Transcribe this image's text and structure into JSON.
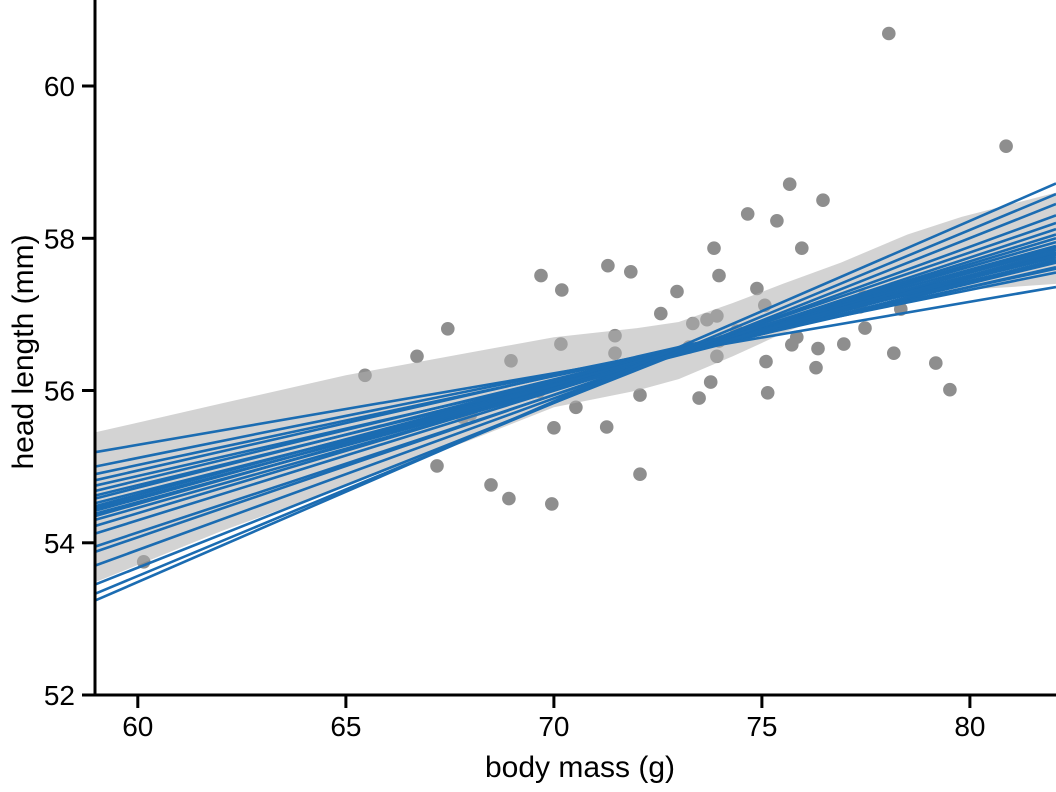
{
  "chart_data": {
    "type": "scatter",
    "title": "",
    "xlabel": "body mass (g)",
    "ylabel": "head length (mm)",
    "xlim": [
      58.97,
      82.07
    ],
    "ylim": [
      52,
      61.13
    ],
    "x_ticks": [
      "60",
      "65",
      "70",
      "75",
      "80"
    ],
    "x_tick_values": [
      60,
      65,
      70,
      75,
      80
    ],
    "y_ticks": [
      "52",
      "54",
      "56",
      "58",
      "60"
    ],
    "y_tick_values": [
      52,
      54,
      56,
      58,
      60
    ],
    "grid": false,
    "legend": "none",
    "axis_color": "#000000",
    "series": [
      {
        "name": "observations",
        "type": "points",
        "color": "#8e8e8e",
        "radius": 6.8,
        "points": [
          [
            60.14,
            53.75
          ],
          [
            65.46,
            56.2
          ],
          [
            66.71,
            56.45
          ],
          [
            67.19,
            55.01
          ],
          [
            67.45,
            56.81
          ],
          [
            67.81,
            55.65
          ],
          [
            68.0,
            55.69
          ],
          [
            68.49,
            54.76
          ],
          [
            68.92,
            54.58
          ],
          [
            68.97,
            56.39
          ],
          [
            69.64,
            55.99
          ],
          [
            69.69,
            57.51
          ],
          [
            69.95,
            54.51
          ],
          [
            70.0,
            55.51
          ],
          [
            70.17,
            56.61
          ],
          [
            70.19,
            57.32
          ],
          [
            70.53,
            55.78
          ],
          [
            71.27,
            55.52
          ],
          [
            71.3,
            57.64
          ],
          [
            71.47,
            56.72
          ],
          [
            71.47,
            56.49
          ],
          [
            71.85,
            57.56
          ],
          [
            72.07,
            55.94
          ],
          [
            72.07,
            54.9
          ],
          [
            72.57,
            57.01
          ],
          [
            72.96,
            57.3
          ],
          [
            73.25,
            56.57
          ],
          [
            73.34,
            56.88
          ],
          [
            73.49,
            55.9
          ],
          [
            73.68,
            56.93
          ],
          [
            73.77,
            56.11
          ],
          [
            73.85,
            57.87
          ],
          [
            73.92,
            56.98
          ],
          [
            73.92,
            56.45
          ],
          [
            73.97,
            56.65
          ],
          [
            73.97,
            57.51
          ],
          [
            74.4,
            56.78
          ],
          [
            74.66,
            58.32
          ],
          [
            74.88,
            57.34
          ],
          [
            75.07,
            57.12
          ],
          [
            75.1,
            56.38
          ],
          [
            75.14,
            55.97
          ],
          [
            75.36,
            58.23
          ],
          [
            75.67,
            58.71
          ],
          [
            75.72,
            56.6
          ],
          [
            75.84,
            56.7
          ],
          [
            75.96,
            57.87
          ],
          [
            76.3,
            56.3
          ],
          [
            76.35,
            56.55
          ],
          [
            76.47,
            58.5
          ],
          [
            76.97,
            56.61
          ],
          [
            77.36,
            57.1
          ],
          [
            77.45,
            57.23
          ],
          [
            77.48,
            56.82
          ],
          [
            78.05,
            60.69
          ],
          [
            78.17,
            56.49
          ],
          [
            78.34,
            57.07
          ],
          [
            79.18,
            56.36
          ],
          [
            79.52,
            56.01
          ],
          [
            80.87,
            59.21
          ]
        ]
      },
      {
        "name": "confidence-band",
        "type": "band",
        "fill": "#afafaf",
        "opacity": 0.55,
        "x": [
          58.97,
          62.0,
          65.0,
          68.0,
          70.0,
          72.0,
          73.0,
          74.3,
          75.5,
          76.9,
          78.5,
          79.8,
          81.0,
          82.07
        ],
        "y_bottom": [
          53.48,
          54.15,
          54.75,
          55.35,
          55.78,
          56.0,
          56.15,
          56.45,
          56.75,
          57.06,
          57.25,
          57.32,
          57.36,
          57.4
        ],
        "y_top": [
          55.45,
          55.83,
          56.2,
          56.5,
          56.7,
          56.82,
          56.9,
          57.15,
          57.4,
          57.68,
          58.05,
          58.28,
          58.45,
          58.6
        ]
      },
      {
        "name": "bootstrap-regression-lines",
        "type": "lines",
        "color": "#1b6cb2",
        "width": 2.6,
        "x_start": 58.97,
        "x_end": 82.07,
        "segments": [
          [
            55.19,
            57.36
          ],
          [
            55.0,
            57.55
          ],
          [
            54.9,
            57.6
          ],
          [
            54.82,
            57.7
          ],
          [
            54.75,
            57.62
          ],
          [
            54.68,
            57.75
          ],
          [
            54.62,
            57.68
          ],
          [
            54.58,
            57.8
          ],
          [
            54.52,
            57.72
          ],
          [
            54.48,
            57.85
          ],
          [
            54.45,
            57.78
          ],
          [
            54.42,
            57.9
          ],
          [
            54.38,
            57.82
          ],
          [
            54.35,
            57.95
          ],
          [
            54.3,
            57.88
          ],
          [
            54.22,
            58.0
          ],
          [
            54.12,
            58.05
          ],
          [
            53.95,
            58.12
          ],
          [
            53.88,
            58.2
          ],
          [
            53.7,
            58.3
          ],
          [
            53.45,
            58.45
          ],
          [
            53.33,
            58.58
          ],
          [
            53.24,
            58.72
          ]
        ]
      }
    ]
  }
}
